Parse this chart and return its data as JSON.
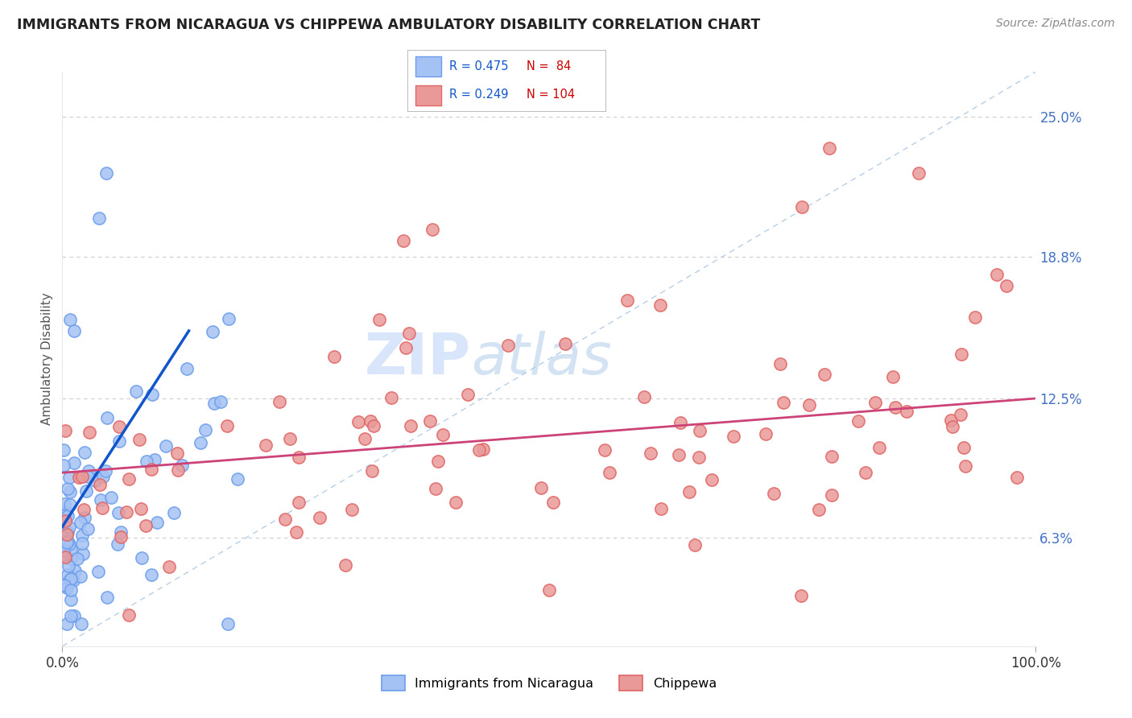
{
  "title": "IMMIGRANTS FROM NICARAGUA VS CHIPPEWA AMBULATORY DISABILITY CORRELATION CHART",
  "source_text": "Source: ZipAtlas.com",
  "ylabel": "Ambulatory Disability",
  "xlim": [
    0.0,
    100.0
  ],
  "ylim": [
    1.5,
    27.0
  ],
  "ytick_positions": [
    6.3,
    12.5,
    18.8,
    25.0
  ],
  "ytick_labels": [
    "6.3%",
    "12.5%",
    "18.8%",
    "25.0%"
  ],
  "xtick_left_label": "0.0%",
  "xtick_right_label": "100.0%",
  "blue_color": "#a4c2f4",
  "blue_edge_color": "#6d9eeb",
  "pink_color": "#ea9999",
  "pink_edge_color": "#e06666",
  "blue_line_color": "#1155cc",
  "pink_line_color": "#cc4477",
  "ref_line_color": "#b7cfe8",
  "background_color": "#ffffff",
  "grid_color": "#cccccc",
  "tick_color": "#4472c4",
  "watermark_color": "#c9daf8",
  "legend_r_color": "#1155cc",
  "legend_n_color": "#cc0000",
  "figsize": [
    14.06,
    8.92
  ],
  "dpi": 100,
  "blue_seed": 77,
  "pink_seed": 55
}
